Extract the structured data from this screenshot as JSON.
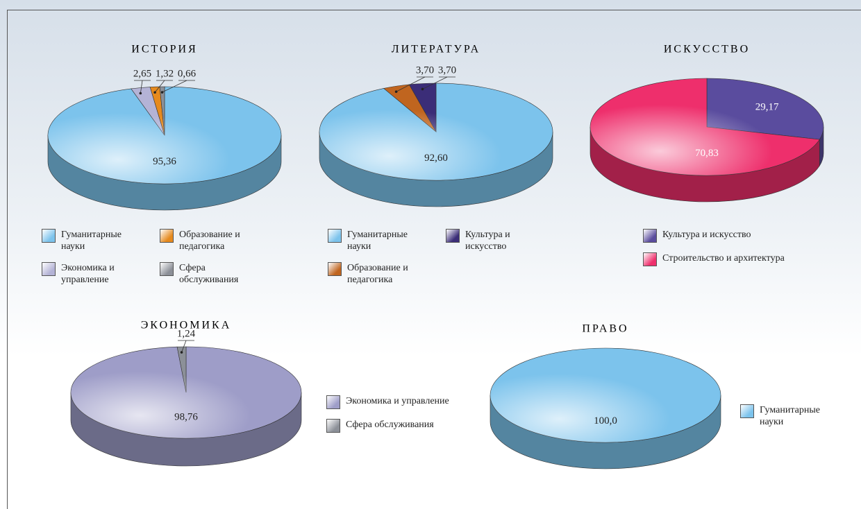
{
  "chart_data": [
    {
      "type": "pie",
      "title": "ИСТОРИЯ",
      "categories": [
        "Гуманитарные науки",
        "Экономика и управление",
        "Образование и педагогика",
        "Сфера обслуживания"
      ],
      "values": [
        95.36,
        2.65,
        1.32,
        0.66
      ],
      "value_labels": [
        "95,36",
        "2,65",
        "1,32",
        "0,66"
      ],
      "colors": [
        "#7cc3ec",
        "#b4b3d6",
        "#e68a1e",
        "#8c9098"
      ]
    },
    {
      "type": "pie",
      "title": "ЛИТЕРАТУРА",
      "categories": [
        "Гуманитарные науки",
        "Образование и педагогика",
        "Культура и искусство"
      ],
      "values": [
        92.6,
        3.7,
        3.7
      ],
      "value_labels": [
        "92,60",
        "3,70",
        "3,70"
      ],
      "colors": [
        "#7cc3ec",
        "#c0651f",
        "#3b2d78"
      ]
    },
    {
      "type": "pie",
      "title": "ИСКУССТВО",
      "categories": [
        "Культура и искусство",
        "Строительство и архитектура"
      ],
      "values": [
        29.17,
        70.83
      ],
      "value_labels": [
        "29,17",
        "70,83"
      ],
      "colors": [
        "#5a4c9e",
        "#ee2f6c"
      ]
    },
    {
      "type": "pie",
      "title": "ЭКОНОМИКА",
      "categories": [
        "Экономика и управление",
        "Сфера обслуживания"
      ],
      "values": [
        98.76,
        1.24
      ],
      "value_labels": [
        "98,76",
        "1,24"
      ],
      "colors": [
        "#9e9dc8",
        "#8c9098"
      ]
    },
    {
      "type": "pie",
      "title": "ПРАВО",
      "categories": [
        "Гуманитарные науки"
      ],
      "values": [
        100.0
      ],
      "value_labels": [
        "100,0"
      ],
      "colors": [
        "#7cc3ec"
      ]
    }
  ]
}
